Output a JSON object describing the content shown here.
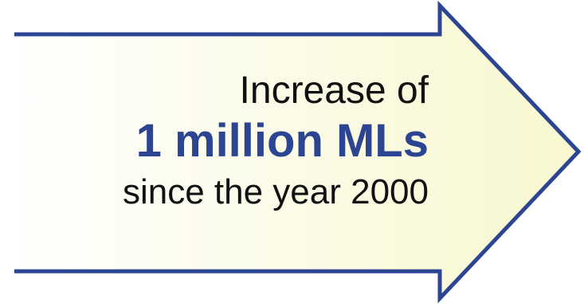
{
  "callout": {
    "line1": "Increase of",
    "line2": "1 million MLs",
    "line3": "since the year 2000"
  },
  "colors": {
    "arrow_stroke": "#2b4593",
    "arrow_fill_left": "#ffffff",
    "arrow_fill_right": "#f8f7cf",
    "highlight_text": "#2b4593",
    "body_text": "#111111"
  },
  "icons": {
    "arrow": "right-arrow-icon"
  }
}
